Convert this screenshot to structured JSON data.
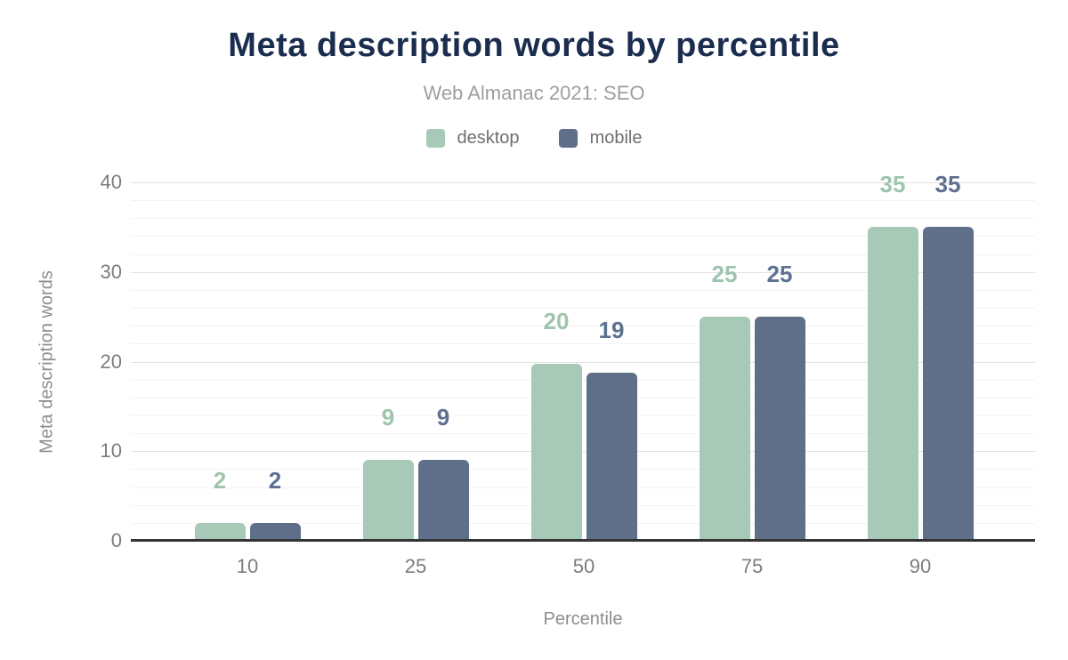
{
  "chart_data": {
    "type": "bar",
    "title": "Meta description words by percentile",
    "subtitle": "Web Almanac 2021: SEO",
    "xlabel": "Percentile",
    "ylabel": "Meta description words",
    "categories": [
      "10",
      "25",
      "50",
      "75",
      "90"
    ],
    "series": [
      {
        "name": "desktop",
        "color": "#a7c9b8",
        "label_color": "#9fc4ae",
        "values": [
          2,
          9,
          20,
          25,
          35
        ],
        "display_values": [
          2,
          9,
          19.8,
          25,
          35
        ],
        "labels": [
          "2",
          "9",
          "20",
          "25",
          "35"
        ]
      },
      {
        "name": "mobile",
        "color": "#5f6f8a",
        "label_color": "#5d7190",
        "values": [
          2,
          9,
          19,
          25,
          35
        ],
        "display_values": [
          2,
          9,
          18.8,
          25,
          35
        ],
        "labels": [
          "2",
          "9",
          "19",
          "25",
          "35"
        ]
      }
    ],
    "ylim": [
      0,
      40
    ],
    "yticks": [
      0,
      10,
      20,
      30,
      40
    ],
    "grid": {
      "minor_step": 2,
      "major_step": 10,
      "enabled": true
    },
    "legend_position": "top"
  },
  "colors": {
    "background": "#ffffff",
    "title": "#1b2d4f",
    "subtitle": "#9e9e9e",
    "legend_text": "#6f6f6f",
    "tick": "#7d7d7d",
    "axis_title": "#8d8d8d",
    "axis_line": "#333333",
    "grid_minor": "#f2f2f2",
    "grid_major": "#e2e2e2"
  }
}
